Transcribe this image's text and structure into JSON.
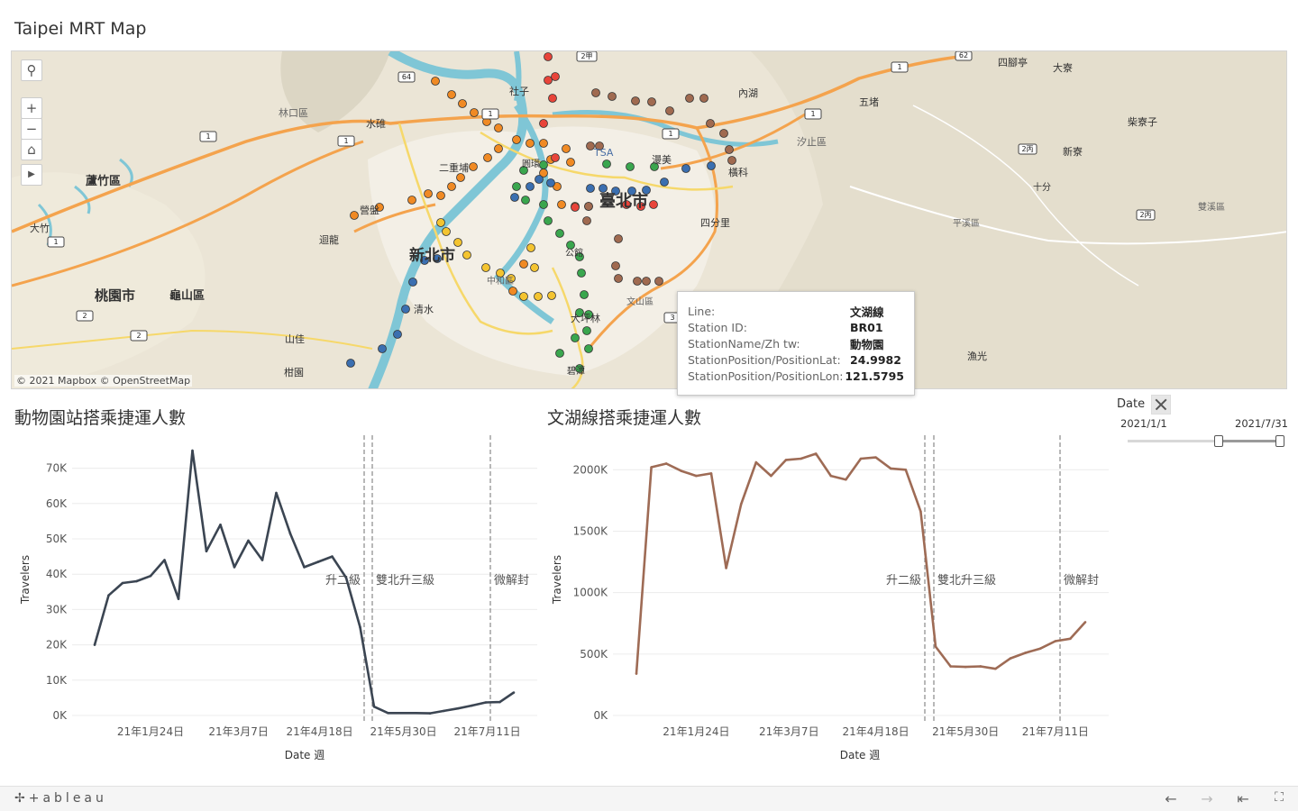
{
  "header": {
    "title": "Taipei MRT Map"
  },
  "map": {
    "credit": "© 2021 Mapbox © OpenStreetMap",
    "place_labels": [
      "林口區",
      "蘆竹區",
      "大竹",
      "桃園市",
      "龜山區",
      "迴龍",
      "營盤",
      "二重埔",
      "社子",
      "水碓",
      "新北市",
      "臺北市",
      "TSA",
      "內湖",
      "五堵",
      "四腳亭",
      "大寮",
      "柴寮子",
      "汐止區",
      "新寮",
      "橫科",
      "漫美",
      "四分里",
      "十分",
      "平溪區",
      "雙溪區",
      "中和區",
      "公館",
      "文山區",
      "大坪林",
      "碧潭",
      "清水",
      "山佳",
      "柑園",
      "漁光",
      "圓環"
    ],
    "road_shields": [
      "64",
      "2甲",
      "62",
      "1",
      "1",
      "1",
      "1",
      "1",
      "1",
      "2丙",
      "2丙",
      "2",
      "2",
      "3"
    ],
    "controls": [
      "search-icon",
      "zoom-in-icon",
      "zoom-out-icon",
      "home-icon",
      "play-icon"
    ]
  },
  "tooltip": {
    "rows": [
      {
        "key": "Line:",
        "value": "文湖線"
      },
      {
        "key": "Station ID:",
        "value": "BR01"
      },
      {
        "key": "StationName/Zh tw:",
        "value": "動物園"
      },
      {
        "key": "StationPosition/PositionLat:",
        "value": "24.9982"
      },
      {
        "key": "StationPosition/PositionLon:",
        "value": "121.5795"
      }
    ]
  },
  "left_chart": {
    "title": "動物園站搭乘捷運人數"
  },
  "right_chart": {
    "title": "文湖線搭乘捷運人數"
  },
  "filter": {
    "label": "Date",
    "min": "2021/1/1",
    "max": "2021/7/31",
    "range_fraction": [
      0.58,
      0.98
    ]
  },
  "footer": {
    "logo": "+ableau",
    "nav_icons": [
      "back-arrow-icon",
      "forward-arrow-icon",
      "first-page-icon",
      "fullscreen-icon"
    ]
  },
  "chart_data": [
    {
      "type": "line",
      "title": "動物園站搭乘捷運人數",
      "xlabel": "Date 週",
      "ylabel": "Travelers",
      "x_tick_labels": [
        "21年1月24日",
        "21年3月7日",
        "21年4月18日",
        "21年5月30日",
        "21年7月11日"
      ],
      "y_tick_labels": [
        "0K",
        "10K",
        "20K",
        "30K",
        "40K",
        "50K",
        "60K",
        "70K"
      ],
      "ylim": [
        0,
        75000
      ],
      "color": "#3b4552",
      "series": [
        {
          "values": [
            20000,
            34000,
            37500,
            38000,
            39500,
            44000,
            33000,
            75000,
            46500,
            54000,
            42000,
            49500,
            44000,
            63000,
            51500,
            42000,
            43500,
            45000,
            39000,
            25000,
            2500,
            700,
            700,
            700,
            600,
            1300,
            2000,
            2800,
            3700,
            3800,
            6500
          ]
        }
      ],
      "annotations": [
        {
          "label": "升二級"
        },
        {
          "label": "雙北升三級"
        },
        {
          "label": "微解封"
        }
      ]
    },
    {
      "type": "line",
      "title": "文湖線搭乘捷運人數",
      "xlabel": "Date 週",
      "ylabel": "Travelers",
      "x_tick_labels": [
        "21年1月24日",
        "21年3月7日",
        "21年4月18日",
        "21年5月30日",
        "21年7月11日"
      ],
      "y_tick_labels": [
        "0K",
        "500K",
        "1000K",
        "1500K",
        "2000K"
      ],
      "ylim": [
        0,
        2200000
      ],
      "color": "#9e6b55",
      "series": [
        {
          "values": [
            340000,
            2020000,
            2050000,
            1990000,
            1950000,
            1970000,
            1200000,
            1720000,
            2060000,
            1950000,
            2080000,
            2090000,
            2130000,
            1950000,
            1920000,
            2090000,
            2100000,
            2010000,
            2000000,
            1660000,
            560000,
            400000,
            395000,
            400000,
            380000,
            465000,
            510000,
            545000,
            605000,
            625000,
            760000
          ]
        }
      ],
      "annotations": [
        {
          "label": "升二級"
        },
        {
          "label": "雙北升三級"
        },
        {
          "label": "微解封"
        }
      ]
    }
  ]
}
